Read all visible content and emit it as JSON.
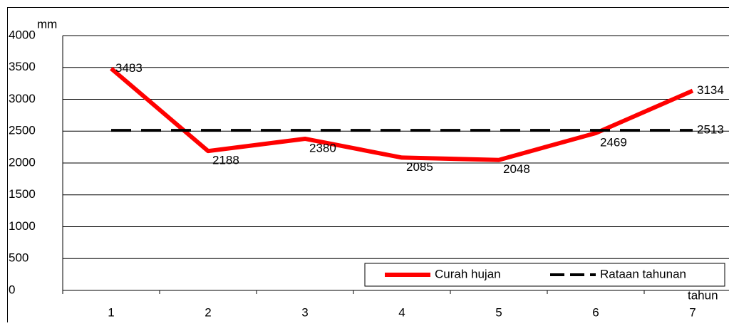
{
  "chart_data": {
    "type": "line",
    "y_label": "mm",
    "x_label": "tahun",
    "categories": [
      "1",
      "2",
      "3",
      "4",
      "5",
      "6",
      "7"
    ],
    "series": [
      {
        "name": "Curah hujan",
        "color": "#ff0000",
        "dash": false,
        "values": [
          3483,
          2188,
          2380,
          2085,
          2048,
          2469,
          3134
        ]
      },
      {
        "name": "Rataan tahunan",
        "color": "#000000",
        "dash": true,
        "values": [
          2513,
          2513,
          2513,
          2513,
          2513,
          2513,
          2513
        ]
      }
    ],
    "ylim": [
      0,
      4000
    ],
    "yticks": [
      0,
      500,
      1000,
      1500,
      2000,
      2500,
      3000,
      3500,
      4000
    ],
    "grid": true,
    "legend": "lower right"
  }
}
